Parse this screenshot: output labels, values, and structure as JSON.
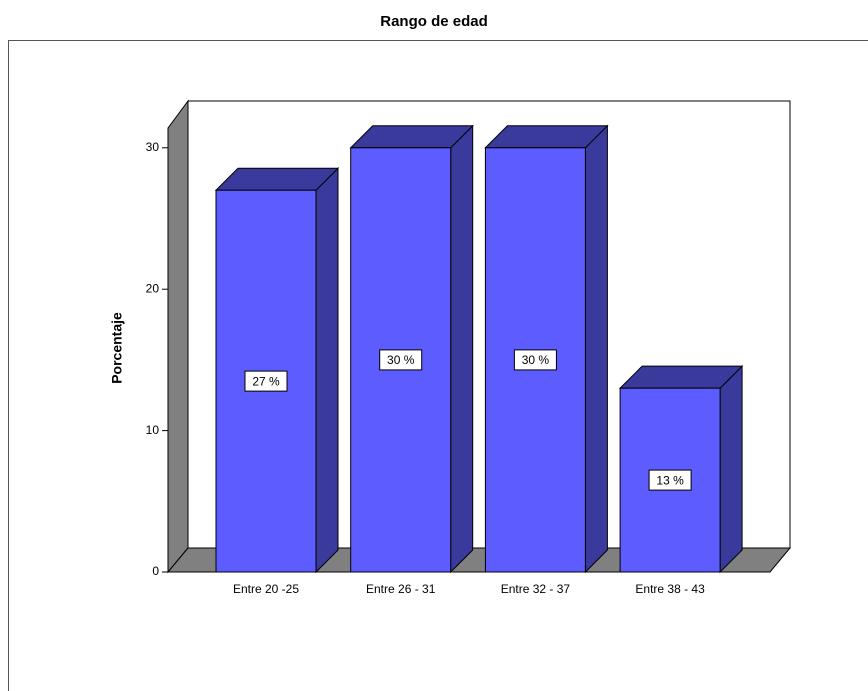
{
  "chart_data": {
    "type": "bar3d",
    "title": "Rango de edad",
    "y_label": "Porcentaje",
    "categories": [
      "Entre 20 -25",
      "Entre 26 - 31",
      "Entre 32 - 37",
      "Entre 38 - 43"
    ],
    "values": [
      27,
      30,
      30,
      13
    ],
    "value_labels": [
      "27 %",
      "30 %",
      "30 %",
      "13 %"
    ],
    "color": "#5c5cff",
    "shade_color": "#3a3a9c",
    "floor_color": "#808080",
    "ylim": [
      0,
      31.4
    ],
    "yticks": [
      0,
      10,
      20,
      30
    ]
  }
}
